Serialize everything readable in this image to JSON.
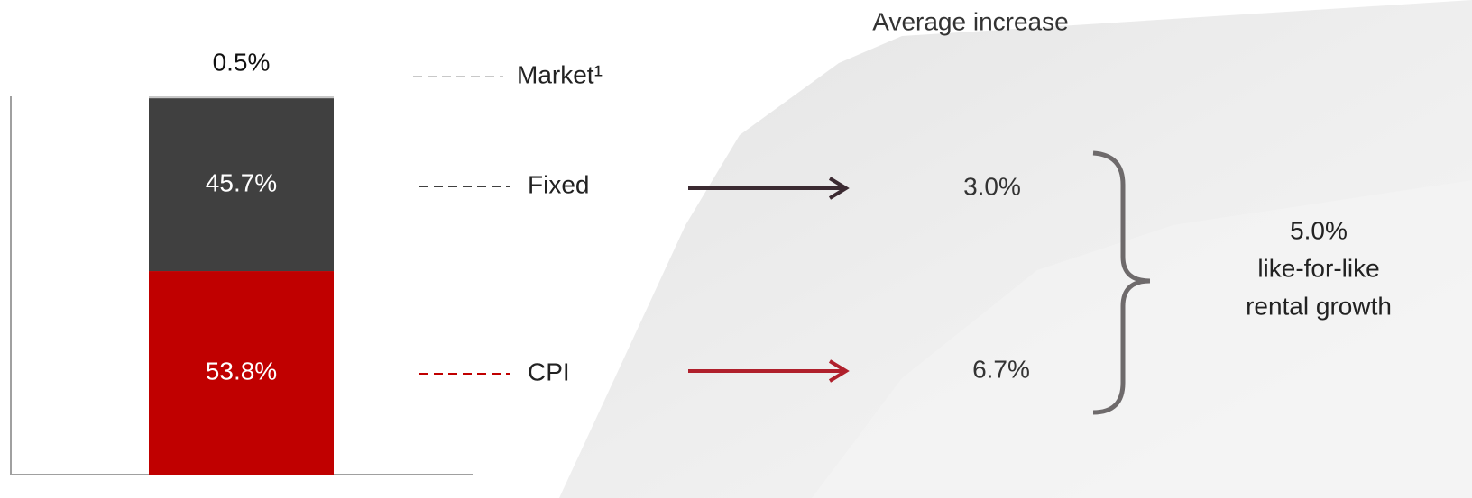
{
  "chart_data": {
    "type": "bar",
    "stacked": true,
    "categories": [
      null
    ],
    "ylim": [
      0,
      100
    ],
    "series": [
      {
        "name": "CPI",
        "color": "#c00000",
        "values": [
          53.8
        ],
        "value_labels": [
          "53.8%"
        ]
      },
      {
        "name": "Fixed",
        "color": "#404040",
        "values": [
          45.7
        ],
        "value_labels": [
          "45.7%"
        ]
      },
      {
        "name": "Market¹",
        "color": "#c8c8c8",
        "values": [
          0.5
        ],
        "value_labels": [
          "0.5%"
        ]
      }
    ],
    "annotations": {
      "title": "Average increase",
      "items": [
        {
          "series": "Fixed",
          "value": 3.0,
          "label": "3.0%",
          "color": "#3b2a31"
        },
        {
          "series": "CPI",
          "value": 6.7,
          "label": "6.7%",
          "color": "#b0202c"
        }
      ],
      "total": {
        "value": 5.0,
        "label": "5.0%",
        "lines": [
          "like-for-like",
          "rental growth"
        ]
      }
    }
  }
}
